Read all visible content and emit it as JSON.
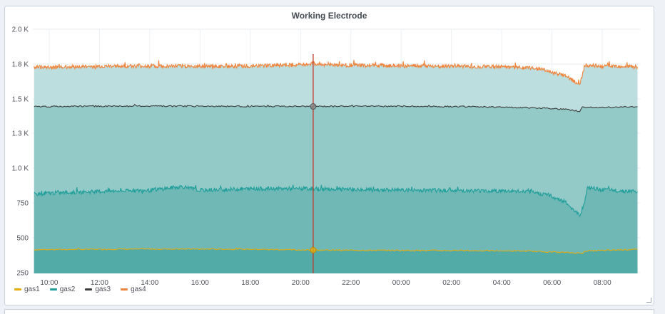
{
  "panel": {
    "title": "Working Electrode"
  },
  "chart_data": {
    "type": "area",
    "title": "Working Electrode",
    "y_ticks": [
      "2.0 K",
      "1.8 K",
      "1.5 K",
      "1.3 K",
      "1.0 K",
      "750",
      "500",
      "250"
    ],
    "y_tick_values": [
      2000,
      1800,
      1500,
      1300,
      1000,
      750,
      500,
      250
    ],
    "ylim": [
      250,
      2000
    ],
    "x_ticks": [
      "10:00",
      "12:00",
      "14:00",
      "16:00",
      "18:00",
      "20:00",
      "22:00",
      "00:00",
      "02:00",
      "04:00",
      "06:00",
      "08:00"
    ],
    "x_tick_hours": [
      10,
      12,
      14,
      16,
      18,
      20,
      22,
      24,
      26,
      28,
      30,
      32
    ],
    "xlim_hours": [
      9.35,
      33.5
    ],
    "cursor_hour": 20.5,
    "grid": true,
    "stacked": true,
    "legend_position": "bottom-left",
    "series": [
      {
        "name": "gas1",
        "color": "#e5ac0e",
        "points": [
          [
            9.4,
            415
          ],
          [
            12,
            418
          ],
          [
            15,
            420
          ],
          [
            18,
            418
          ],
          [
            20.5,
            412
          ],
          [
            24,
            410
          ],
          [
            27,
            408
          ],
          [
            29,
            405
          ],
          [
            30.5,
            395
          ],
          [
            31.2,
            390
          ],
          [
            31.3,
            405
          ],
          [
            33.4,
            418
          ]
        ]
      },
      {
        "name": "gas2",
        "color": "#1f9e9a",
        "points": [
          [
            9.4,
            812
          ],
          [
            10,
            820
          ],
          [
            12,
            832
          ],
          [
            14,
            840
          ],
          [
            15.3,
            868
          ],
          [
            16,
            840
          ],
          [
            18,
            852
          ],
          [
            20.5,
            852
          ],
          [
            22,
            846
          ],
          [
            24,
            842
          ],
          [
            26,
            840
          ],
          [
            28,
            836
          ],
          [
            29,
            830
          ],
          [
            29.8,
            810
          ],
          [
            30.5,
            760
          ],
          [
            31.0,
            680
          ],
          [
            31.1,
            650
          ],
          [
            31.3,
            760
          ],
          [
            31.4,
            860
          ],
          [
            32,
            845
          ],
          [
            33.4,
            830
          ]
        ]
      },
      {
        "name": "gas3",
        "color": "#3d3d3d",
        "points": [
          [
            9.4,
            1455
          ],
          [
            12,
            1458
          ],
          [
            15,
            1458
          ],
          [
            18,
            1457
          ],
          [
            20.5,
            1456
          ],
          [
            23,
            1458
          ],
          [
            26,
            1456
          ],
          [
            28,
            1452
          ],
          [
            29.5,
            1447
          ],
          [
            30.5,
            1440
          ],
          [
            31.1,
            1428
          ],
          [
            31.2,
            1450
          ],
          [
            33.4,
            1454
          ]
        ]
      },
      {
        "name": "gas4",
        "color": "#ef843c",
        "points": [
          [
            9.4,
            1772
          ],
          [
            12,
            1780
          ],
          [
            15,
            1782
          ],
          [
            18,
            1782
          ],
          [
            20.5,
            1800
          ],
          [
            21.5,
            1790
          ],
          [
            24,
            1785
          ],
          [
            26,
            1780
          ],
          [
            28,
            1778
          ],
          [
            29,
            1770
          ],
          [
            29.5,
            1760
          ],
          [
            30.0,
            1730
          ],
          [
            30.5,
            1700
          ],
          [
            31.0,
            1640
          ],
          [
            31.1,
            1620
          ],
          [
            31.2,
            1700
          ],
          [
            31.3,
            1790
          ],
          [
            32,
            1782
          ],
          [
            33.4,
            1775
          ]
        ]
      }
    ]
  }
}
